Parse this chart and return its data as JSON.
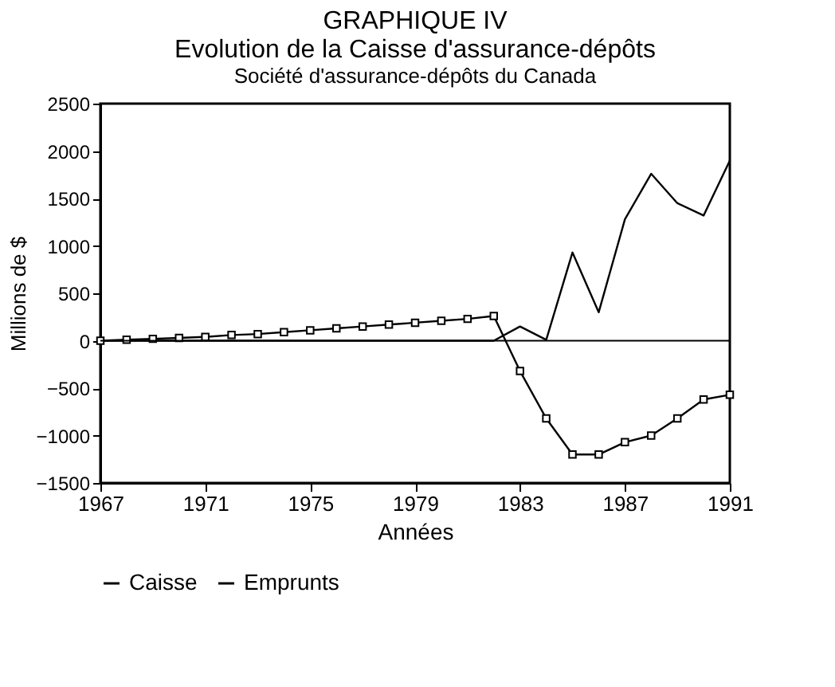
{
  "chart_data": {
    "type": "line",
    "title": [
      "GRAPHIQUE IV",
      "Evolution de la Caisse d'assurance-dépôts"
    ],
    "subtitle": "Société d'assurance-dépôts du Canada",
    "xlabel": "Années",
    "ylabel": "Millions de $",
    "x": [
      1967,
      1968,
      1969,
      1970,
      1971,
      1972,
      1973,
      1974,
      1975,
      1976,
      1977,
      1978,
      1979,
      1980,
      1981,
      1982,
      1983,
      1984,
      1985,
      1986,
      1987,
      1988,
      1989,
      1990,
      1991
    ],
    "series": [
      {
        "name": "Caisse",
        "color": "#000000",
        "marker": "square",
        "values": [
          0,
          10,
          20,
          30,
          40,
          60,
          70,
          90,
          110,
          130,
          150,
          170,
          190,
          210,
          230,
          260,
          -320,
          -820,
          -1200,
          -1200,
          -1070,
          -1000,
          -820,
          -620,
          -570
        ]
      },
      {
        "name": "Emprunts",
        "color": "#000000",
        "marker": "none",
        "values": [
          0,
          0,
          0,
          0,
          0,
          0,
          0,
          0,
          0,
          0,
          0,
          0,
          0,
          0,
          0,
          0,
          150,
          10,
          930,
          300,
          1280,
          1760,
          1450,
          1320,
          1900
        ]
      }
    ],
    "xlim": [
      1967,
      1991
    ],
    "xticks": [
      1967,
      1971,
      1975,
      1979,
      1983,
      1987,
      1991
    ],
    "ylim": [
      -1500,
      2500
    ],
    "yticks": [
      -1500,
      -1000,
      -500,
      0,
      500,
      1000,
      1500,
      2000,
      2500
    ],
    "ref_lines": [
      {
        "axis": "y",
        "value": 0
      }
    ],
    "grid": false,
    "legend": "bottom"
  }
}
